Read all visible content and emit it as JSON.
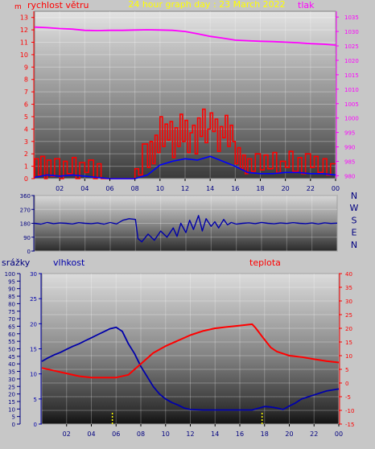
{
  "page": {
    "title": "24 hour graph day : 23 March 2022",
    "colors": {
      "background": "#c7c7c7",
      "wind": "#ff0000",
      "wind_avg": "#0000ff",
      "pressure": "#ff00ff",
      "direction": "#0000aa",
      "humidity": "#0000aa",
      "temperature": "#ff0000",
      "rain": "#ffff00",
      "left_axis_text": "#ff0000",
      "direction_axis_text": "#000080",
      "title_text": "#ffff00"
    }
  },
  "chart_data": [
    {
      "id": "wind_pressure",
      "type": "line",
      "title": "24 hour graph day : 23 March 2022",
      "left_label": "rychlost větru",
      "right_label": "tlak",
      "y_unit_mark": "m",
      "x_ticks": [
        "02",
        "04",
        "06",
        "08",
        "10",
        "12",
        "14",
        "16",
        "18",
        "20",
        "22",
        "00"
      ],
      "yleft_ticks": [
        "0",
        "1",
        "2",
        "3",
        "4",
        "5",
        "6",
        "7",
        "8",
        "9",
        "10",
        "11",
        "12",
        "13"
      ],
      "yleft_range": [
        0,
        13.5
      ],
      "yright_ticks": [
        "980",
        "985",
        "990",
        "995",
        "1000",
        "1005",
        "1010",
        "1015",
        "1020",
        "1025",
        "1030",
        "1035"
      ],
      "yright_range": [
        979,
        1037
      ],
      "series": [
        {
          "name": "tlak",
          "x": [
            0,
            1,
            2,
            3,
            4,
            5,
            6,
            7,
            8,
            9,
            10,
            11,
            12,
            13,
            14,
            15,
            16,
            17,
            18,
            19,
            20,
            21,
            22,
            23,
            24
          ],
          "values": [
            1031.5,
            1031.3,
            1031.0,
            1030.8,
            1030.4,
            1030.3,
            1030.4,
            1030.4,
            1030.5,
            1030.6,
            1030.5,
            1030.4,
            1030.0,
            1029.2,
            1028.3,
            1027.7,
            1027.0,
            1026.8,
            1026.6,
            1026.5,
            1026.3,
            1026.1,
            1025.8,
            1025.6,
            1025.3
          ]
        },
        {
          "name": "wind_gust",
          "x": [
            0,
            0.3,
            0.5,
            0.8,
            1.0,
            1.3,
            1.6,
            2.0,
            2.3,
            2.6,
            3.0,
            3.3,
            3.6,
            4.0,
            4.3,
            4.7,
            5.0,
            5.3,
            5.6,
            6.0,
            6.5,
            7.0,
            7.5,
            8.0,
            8.3,
            8.6,
            9.0,
            9.2,
            9.4,
            9.6,
            9.8,
            10.0,
            10.2,
            10.4,
            10.6,
            10.8,
            11.0,
            11.2,
            11.4,
            11.6,
            11.8,
            12.0,
            12.2,
            12.4,
            12.6,
            12.8,
            13.0,
            13.2,
            13.4,
            13.6,
            13.8,
            14.0,
            14.2,
            14.4,
            14.6,
            14.8,
            15.0,
            15.2,
            15.4,
            15.6,
            15.8,
            16.0,
            16.2,
            16.4,
            16.6,
            16.8,
            17.0,
            17.3,
            17.6,
            18.0,
            18.3,
            18.6,
            19.0,
            19.3,
            19.6,
            20.0,
            20.3,
            20.6,
            21.0,
            21.3,
            21.6,
            22.0,
            22.3,
            22.6,
            23.0,
            23.3,
            23.6,
            24.0
          ],
          "values": [
            0,
            1.6,
            0.3,
            1.8,
            0,
            1.5,
            0.2,
            1.6,
            0,
            1.4,
            0.4,
            1.7,
            0,
            1.3,
            0.5,
            1.5,
            0,
            1.2,
            0,
            0,
            0,
            0,
            0,
            0,
            0.8,
            0.3,
            2.8,
            0.9,
            3.0,
            1.2,
            3.5,
            2.1,
            5.0,
            2.6,
            4.4,
            3.1,
            4.6,
            1.7,
            4.1,
            2.6,
            5.2,
            3.0,
            4.7,
            2.1,
            3.7,
            4.3,
            2.0,
            4.9,
            3.4,
            5.6,
            2.9,
            4.0,
            5.3,
            3.8,
            4.8,
            2.2,
            4.2,
            3.3,
            5.1,
            2.6,
            4.3,
            3.0,
            1.2,
            2.5,
            0.8,
            1.9,
            0.4,
            1.6,
            0.6,
            2.0,
            0.7,
            1.9,
            0.8,
            2.1,
            0.5,
            1.4,
            0.9,
            2.2,
            0.6,
            1.7,
            0.4,
            2.0,
            0.9,
            1.8,
            0.5,
            1.6,
            0.3,
            1.2
          ]
        },
        {
          "name": "wind_avg",
          "x": [
            0,
            1,
            2,
            3,
            4,
            5,
            6,
            7,
            8,
            9,
            10,
            11,
            12,
            13,
            14,
            15,
            16,
            17,
            18,
            19,
            20,
            21,
            22,
            23,
            24
          ],
          "values": [
            0.1,
            0.3,
            0.2,
            0.3,
            0.2,
            0.1,
            0,
            0,
            0,
            0.3,
            1.1,
            1.4,
            1.6,
            1.5,
            1.8,
            1.4,
            1.0,
            0.5,
            0.4,
            0.4,
            0.5,
            0.5,
            0.4,
            0.4,
            0.3
          ]
        }
      ]
    },
    {
      "id": "direction",
      "type": "line",
      "x_ticks": [],
      "y_ticks": [
        "0",
        "90",
        "180",
        "270",
        "360"
      ],
      "y_range": [
        0,
        360
      ],
      "compass_labels": [
        "N",
        "W",
        "S",
        "E",
        "N"
      ],
      "series": [
        {
          "name": "direction",
          "x": [
            0,
            0.5,
            1,
            1.5,
            2,
            2.5,
            3,
            3.5,
            4,
            4.5,
            5,
            5.5,
            6,
            6.5,
            7,
            7.5,
            8,
            8.2,
            8.5,
            9,
            9.5,
            10,
            10.5,
            11,
            11.3,
            11.6,
            12,
            12.3,
            12.6,
            13,
            13.3,
            13.6,
            14,
            14.3,
            14.6,
            15,
            15.3,
            15.6,
            16,
            16.5,
            17,
            17.5,
            18,
            18.5,
            19,
            19.5,
            20,
            20.5,
            21,
            21.5,
            22,
            22.5,
            23,
            23.5,
            24
          ],
          "values": [
            180,
            175,
            185,
            178,
            182,
            180,
            176,
            184,
            180,
            178,
            182,
            175,
            185,
            176,
            200,
            210,
            205,
            80,
            60,
            110,
            70,
            130,
            90,
            150,
            95,
            180,
            120,
            200,
            140,
            230,
            130,
            210,
            160,
            190,
            150,
            205,
            170,
            185,
            175,
            180,
            183,
            178,
            185,
            180,
            177,
            182,
            179,
            184,
            180,
            178,
            182,
            176,
            183,
            179,
            181
          ]
        }
      ]
    },
    {
      "id": "humidity_temp_rain",
      "type": "line",
      "left_label_outer": "srážky",
      "left_label_inner": "vlhkost",
      "right_label": "teplota",
      "x_ticks": [
        "02",
        "04",
        "06",
        "08",
        "10",
        "12",
        "14",
        "16",
        "18",
        "20",
        "22",
        "00"
      ],
      "y_rain_ticks": [
        "0",
        "5",
        "10",
        "15",
        "20",
        "25",
        "30",
        "35",
        "40",
        "45",
        "50",
        "55",
        "60",
        "65",
        "70",
        "75",
        "80",
        "85",
        "90",
        "95",
        "100"
      ],
      "y_hum_ticks": [
        "0",
        "5",
        "10",
        "15",
        "20",
        "25",
        "30"
      ],
      "y_hum_range": [
        0,
        30
      ],
      "y_temp_ticks": [
        "-15",
        "-10",
        "-5",
        "0",
        "5",
        "10",
        "15",
        "20",
        "25",
        "30",
        "35",
        "40"
      ],
      "y_temp_range": [
        -15,
        40
      ],
      "series": [
        {
          "name": "vlhkost",
          "x": [
            0,
            0.5,
            1,
            1.5,
            2,
            2.5,
            3,
            3.5,
            4,
            4.5,
            5,
            5.5,
            6,
            6.5,
            7,
            7.5,
            8,
            8.5,
            9,
            9.5,
            10,
            10.5,
            11,
            11.5,
            12,
            13,
            14,
            15,
            16,
            17,
            18,
            18.5,
            19,
            19.5,
            20,
            20.5,
            21,
            22,
            23,
            24
          ],
          "values": [
            12.5,
            13.2,
            13.8,
            14.3,
            14.9,
            15.5,
            16.0,
            16.6,
            17.2,
            17.8,
            18.4,
            19.0,
            19.3,
            18.5,
            16.0,
            14.0,
            11.5,
            9.5,
            7.5,
            6.0,
            5.0,
            4.3,
            3.8,
            3.2,
            2.9,
            2.8,
            2.8,
            2.8,
            2.8,
            2.8,
            3.5,
            3.4,
            3.2,
            2.9,
            3.6,
            4.2,
            5.0,
            5.8,
            6.6,
            7.0
          ]
        },
        {
          "name": "teplota",
          "x": [
            0,
            1,
            2,
            3,
            4,
            5,
            6,
            7,
            8,
            9,
            10,
            11,
            12,
            13,
            14,
            15,
            16,
            17,
            17.3,
            17.8,
            18.5,
            19,
            20,
            21,
            22,
            23,
            24
          ],
          "values": [
            5.5,
            4.5,
            3.5,
            2.5,
            2.0,
            2.0,
            2.0,
            3.0,
            7.0,
            11.0,
            13.5,
            15.5,
            17.5,
            19.0,
            20.0,
            20.5,
            21.0,
            21.5,
            20.0,
            17.0,
            13.0,
            11.5,
            10.0,
            9.5,
            8.7,
            8.0,
            7.5
          ]
        },
        {
          "name": "srážky",
          "x": [
            5.7,
            17.8
          ],
          "values": [
            8,
            8
          ]
        }
      ]
    }
  ]
}
